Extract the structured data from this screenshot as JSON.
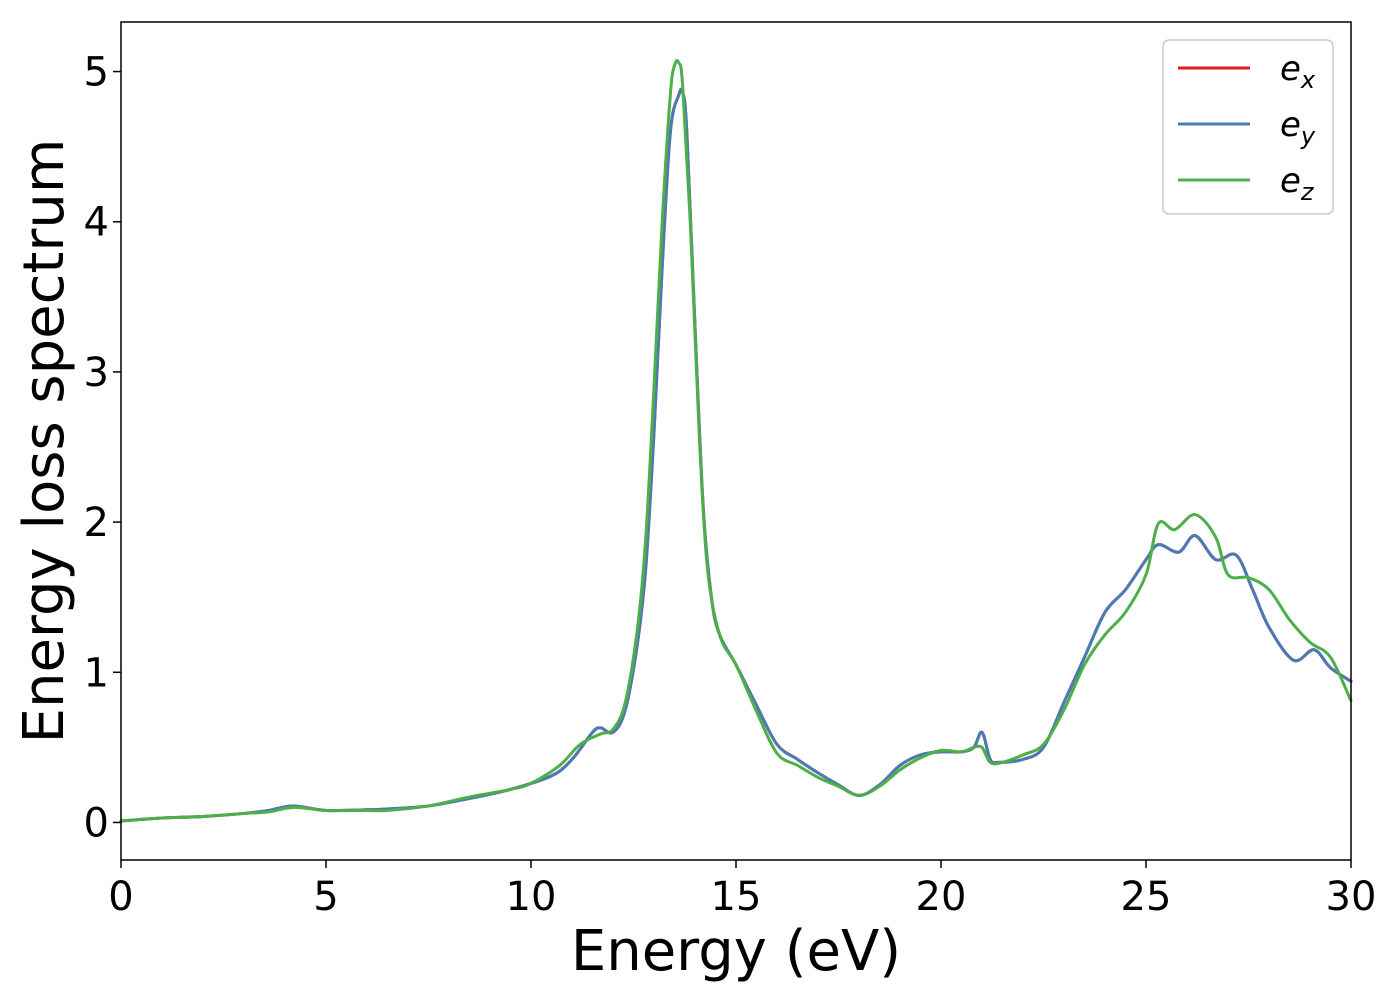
{
  "chart_data": {
    "type": "line",
    "xlabel": "Energy (eV)",
    "ylabel": "Energy loss spectrum",
    "xlim": [
      0,
      30
    ],
    "ylim": [
      -0.25,
      5.33
    ],
    "xticks": [
      0,
      5,
      10,
      15,
      20,
      25,
      30
    ],
    "yticks": [
      0,
      1,
      2,
      3,
      4,
      5
    ],
    "grid": false,
    "legend": {
      "placement": "top-right"
    },
    "series": [
      {
        "name": "e_x",
        "label_base": "e",
        "label_sub": "x",
        "color": "#e41a1c",
        "x": [
          0,
          1,
          2,
          3,
          3.6,
          4.2,
          5,
          6,
          6.5,
          7.5,
          8.5,
          9.5,
          10.5,
          11,
          11.5,
          11.7,
          12,
          12.3,
          12.6,
          12.8,
          13.0,
          13.2,
          13.4,
          13.6,
          13.7,
          13.8,
          14.0,
          14.2,
          14.4,
          14.6,
          15.0,
          15.5,
          16.0,
          16.5,
          17.0,
          17.5,
          18.0,
          18.5,
          19.0,
          19.5,
          20.0,
          20.5,
          20.8,
          21.0,
          21.2,
          21.4,
          22.0,
          22.5,
          23.0,
          23.5,
          24.0,
          24.5,
          25.0,
          25.3,
          25.8,
          26.2,
          26.7,
          27.2,
          27.6,
          28.0,
          28.6,
          29.1,
          29.5,
          30.0
        ],
        "values": [
          0.01,
          0.03,
          0.04,
          0.06,
          0.08,
          0.11,
          0.08,
          0.085,
          0.09,
          0.11,
          0.16,
          0.22,
          0.31,
          0.42,
          0.6,
          0.63,
          0.6,
          0.75,
          1.2,
          1.7,
          2.6,
          3.7,
          4.6,
          4.84,
          4.86,
          4.6,
          3.3,
          2.1,
          1.5,
          1.25,
          1.05,
          0.78,
          0.52,
          0.42,
          0.33,
          0.25,
          0.18,
          0.25,
          0.38,
          0.45,
          0.47,
          0.47,
          0.5,
          0.6,
          0.42,
          0.4,
          0.42,
          0.5,
          0.8,
          1.1,
          1.4,
          1.55,
          1.75,
          1.85,
          1.8,
          1.91,
          1.75,
          1.78,
          1.55,
          1.3,
          1.08,
          1.15,
          1.03,
          0.94
        ]
      },
      {
        "name": "e_y",
        "label_base": "e",
        "label_sub": "y",
        "color": "#4a7bb5",
        "x": [
          0,
          1,
          2,
          3,
          3.6,
          4.2,
          5,
          6,
          6.5,
          7.5,
          8.5,
          9.5,
          10.5,
          11,
          11.5,
          11.7,
          12,
          12.3,
          12.6,
          12.8,
          13.0,
          13.2,
          13.4,
          13.6,
          13.7,
          13.8,
          14.0,
          14.2,
          14.4,
          14.6,
          15.0,
          15.5,
          16.0,
          16.5,
          17.0,
          17.5,
          18.0,
          18.5,
          19.0,
          19.5,
          20.0,
          20.5,
          20.8,
          21.0,
          21.2,
          21.4,
          22.0,
          22.5,
          23.0,
          23.5,
          24.0,
          24.5,
          25.0,
          25.3,
          25.8,
          26.2,
          26.7,
          27.2,
          27.6,
          28.0,
          28.6,
          29.1,
          29.5,
          30.0
        ],
        "values": [
          0.01,
          0.03,
          0.04,
          0.06,
          0.08,
          0.11,
          0.08,
          0.085,
          0.09,
          0.11,
          0.16,
          0.22,
          0.31,
          0.42,
          0.6,
          0.63,
          0.6,
          0.75,
          1.2,
          1.7,
          2.6,
          3.7,
          4.6,
          4.84,
          4.86,
          4.6,
          3.3,
          2.1,
          1.5,
          1.25,
          1.05,
          0.78,
          0.52,
          0.42,
          0.33,
          0.25,
          0.18,
          0.25,
          0.38,
          0.45,
          0.47,
          0.47,
          0.5,
          0.6,
          0.42,
          0.4,
          0.42,
          0.5,
          0.8,
          1.1,
          1.4,
          1.55,
          1.75,
          1.85,
          1.8,
          1.91,
          1.75,
          1.78,
          1.55,
          1.3,
          1.08,
          1.15,
          1.03,
          0.94
        ]
      },
      {
        "name": "e_z",
        "label_base": "e",
        "label_sub": "z",
        "color": "#4daf4a",
        "x": [
          0,
          1,
          2,
          3,
          3.6,
          4.2,
          5,
          6,
          6.5,
          7.5,
          8.5,
          9.5,
          10.0,
          10.7,
          11.2,
          11.7,
          12.0,
          12.3,
          12.6,
          12.8,
          13.0,
          13.2,
          13.4,
          13.5,
          13.6,
          13.7,
          13.9,
          14.1,
          14.3,
          14.6,
          15.0,
          15.5,
          16.0,
          16.5,
          17.0,
          17.5,
          18.0,
          18.5,
          19.0,
          19.5,
          20.0,
          20.5,
          20.8,
          21.0,
          21.2,
          21.5,
          22.0,
          22.5,
          23.0,
          23.5,
          24.0,
          24.5,
          25.0,
          25.3,
          25.7,
          26.2,
          26.7,
          27.0,
          27.5,
          28.0,
          28.5,
          29.0,
          29.5,
          30.0
        ],
        "values": [
          0.01,
          0.03,
          0.04,
          0.06,
          0.07,
          0.1,
          0.08,
          0.08,
          0.08,
          0.11,
          0.17,
          0.22,
          0.26,
          0.38,
          0.52,
          0.59,
          0.62,
          0.8,
          1.3,
          1.9,
          2.9,
          4.0,
          4.85,
          5.04,
          5.06,
          4.9,
          3.9,
          2.6,
          1.7,
          1.25,
          1.05,
          0.74,
          0.46,
          0.38,
          0.3,
          0.24,
          0.18,
          0.24,
          0.35,
          0.43,
          0.48,
          0.47,
          0.5,
          0.5,
          0.4,
          0.4,
          0.45,
          0.52,
          0.75,
          1.05,
          1.25,
          1.4,
          1.65,
          1.99,
          1.95,
          2.05,
          1.9,
          1.65,
          1.63,
          1.55,
          1.35,
          1.2,
          1.1,
          0.81
        ]
      }
    ]
  }
}
